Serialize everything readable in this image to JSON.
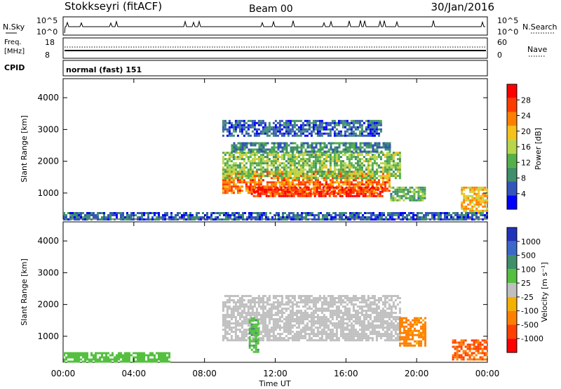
{
  "header": {
    "station": "Stokkseyri (fitACF)",
    "beam": "Beam 00",
    "date": "30/Jan/2016"
  },
  "strips": {
    "nsky": {
      "label": "N.Sky",
      "left_ticks": [
        "10^5",
        "10^0"
      ]
    },
    "nsearch": {
      "label": "N.Search",
      "right_ticks": [
        "10^5",
        "10^0"
      ]
    },
    "freq": {
      "label_line1": "Freq.",
      "label_line2": "[MHz]",
      "left_ticks": [
        "18",
        "8"
      ]
    },
    "nave": {
      "label": "Nave",
      "right_ticks": [
        "60",
        "0"
      ]
    },
    "cpid": {
      "label": "CPID",
      "value": "normal (fast) 151"
    }
  },
  "colors": {
    "power": [
      "#0000ff",
      "#3355bb",
      "#3f8f6a",
      "#55b04a",
      "#b8d64a",
      "#f4c21a",
      "#ff8000",
      "#ff3c00",
      "#ff0000"
    ],
    "velocity": [
      "#2233bb",
      "#3c68c8",
      "#3f8f6a",
      "#55c040",
      "#bfbfbf",
      "#f4b000",
      "#ff8000",
      "#ff4000",
      "#ff0000"
    ]
  },
  "chart_data": [
    {
      "type": "heatmap",
      "name": "power",
      "xlabel": "",
      "ylabel": "Slant Range [km]",
      "x_ticks": [
        "00:00",
        "04:00",
        "08:00",
        "12:00",
        "16:00",
        "20:00",
        "00:00"
      ],
      "y_ticks": [
        "1000",
        "2000",
        "3000",
        "4000"
      ],
      "xlim_hours": [
        0,
        24
      ],
      "ylim_km": [
        180,
        4600
      ],
      "colorbar": {
        "label": "Power [dB]",
        "ticks": [
          "4",
          "8",
          "12",
          "16",
          "20",
          "24",
          "28"
        ],
        "range": [
          0,
          32
        ]
      },
      "regions": [
        {
          "t": [
            9.0,
            18.5
          ],
          "r": [
            1000,
            1700
          ],
          "value": 24
        },
        {
          "t": [
            9.0,
            19.0
          ],
          "r": [
            1500,
            2300
          ],
          "value": 14
        },
        {
          "t": [
            9.5,
            18.5
          ],
          "r": [
            2300,
            2600
          ],
          "value": 9
        },
        {
          "t": [
            10.5,
            18.0
          ],
          "r": [
            900,
            1200
          ],
          "value": 28
        },
        {
          "t": [
            18.5,
            20.5
          ],
          "r": [
            800,
            1200
          ],
          "value": 12
        },
        {
          "t": [
            22.5,
            24.0
          ],
          "r": [
            400,
            1200
          ],
          "value": 20
        },
        {
          "t": [
            0.0,
            24.0
          ],
          "r": [
            200,
            400
          ],
          "value": 6
        },
        {
          "t": [
            9.0,
            18.0
          ],
          "r": [
            2800,
            3300
          ],
          "value": 6
        }
      ]
    },
    {
      "type": "heatmap",
      "name": "velocity",
      "xlabel": "Time UT",
      "ylabel": "Slant Range [km]",
      "x_ticks": [
        "00:00",
        "04:00",
        "08:00",
        "12:00",
        "16:00",
        "20:00",
        "00:00"
      ],
      "y_ticks": [
        "1000",
        "2000",
        "3000",
        "4000"
      ],
      "xlim_hours": [
        0,
        24
      ],
      "ylim_km": [
        180,
        4600
      ],
      "colorbar": {
        "label": "Velocity [m s⁻¹]",
        "ticks": [
          "1000",
          "500",
          "100",
          "25",
          "-25",
          "-100",
          "-500",
          "-1000"
        ]
      },
      "regions": [
        {
          "t": [
            9.0,
            19.0
          ],
          "r": [
            900,
            2300
          ],
          "value": 0
        },
        {
          "t": [
            19.0,
            20.5
          ],
          "r": [
            700,
            1600
          ],
          "value": -150
        },
        {
          "t": [
            22.0,
            24.0
          ],
          "r": [
            300,
            900
          ],
          "value": -500
        },
        {
          "t": [
            0.0,
            6.0
          ],
          "r": [
            200,
            500
          ],
          "value": 50
        },
        {
          "t": [
            10.5,
            11.0
          ],
          "r": [
            500,
            1600
          ],
          "value": 80
        }
      ]
    }
  ]
}
